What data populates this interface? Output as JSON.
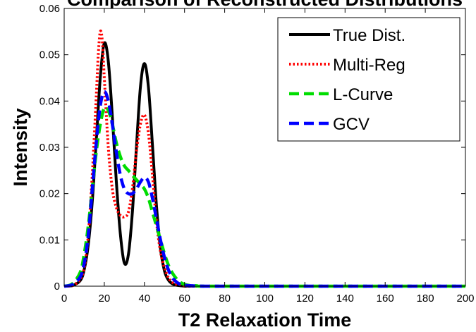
{
  "chart_data": {
    "type": "line",
    "title": "Comparison of Reconstructed Distributions",
    "xlabel": "T2 Relaxation Time",
    "ylabel": "Intensity",
    "xlim": [
      0,
      200
    ],
    "ylim": [
      0,
      0.06
    ],
    "xticks": [
      0,
      20,
      40,
      60,
      80,
      100,
      120,
      140,
      160,
      180,
      200
    ],
    "yticks": [
      0,
      0.01,
      0.02,
      0.03,
      0.04,
      0.05,
      0.06
    ],
    "xtick_labels": [
      "0",
      "20",
      "40",
      "60",
      "80",
      "100",
      "120",
      "140",
      "160",
      "180",
      "200"
    ],
    "ytick_labels": [
      "0",
      "0.01",
      "0.02",
      "0.03",
      "0.04",
      "0.05",
      "0.06"
    ],
    "grid": false,
    "legend_position": "top-right",
    "series": [
      {
        "name": "True Dist.",
        "color": "#000000",
        "style": "solid",
        "x": [
          0,
          4,
          8,
          10,
          12,
          14,
          16,
          18,
          20,
          22,
          24,
          26,
          28,
          30,
          32,
          34,
          36,
          38,
          40,
          42,
          44,
          46,
          48,
          50,
          52,
          54,
          56,
          58,
          60,
          64,
          70,
          100,
          150,
          200
        ],
        "y": [
          0,
          0.0001,
          0.0012,
          0.0036,
          0.0089,
          0.0183,
          0.0315,
          0.0451,
          0.0525,
          0.0486,
          0.0367,
          0.0226,
          0.0113,
          0.005,
          0.0068,
          0.016,
          0.0299,
          0.043,
          0.0481,
          0.043,
          0.0305,
          0.0174,
          0.0082,
          0.0033,
          0.0013,
          0.0005,
          0.0002,
          0.0001,
          0,
          0,
          0,
          0,
          0,
          0
        ]
      },
      {
        "name": "Multi-Reg",
        "color": "#ff0000",
        "style": "dotted",
        "x": [
          0,
          4,
          8,
          10,
          12,
          14,
          16,
          17,
          18,
          19,
          20,
          22,
          24,
          26,
          28,
          30,
          32,
          34,
          36,
          38,
          40,
          42,
          44,
          46,
          48,
          50,
          52,
          54,
          56,
          58,
          60,
          64,
          70,
          100,
          150,
          200
        ],
        "y": [
          0,
          0.0001,
          0.0015,
          0.004,
          0.011,
          0.024,
          0.041,
          0.05,
          0.055,
          0.053,
          0.045,
          0.03,
          0.021,
          0.017,
          0.0153,
          0.015,
          0.016,
          0.021,
          0.029,
          0.035,
          0.037,
          0.033,
          0.024,
          0.014,
          0.0075,
          0.004,
          0.0018,
          0.0008,
          0.0004,
          0.0002,
          0.0001,
          0,
          0,
          0,
          0,
          0
        ]
      },
      {
        "name": "L-Curve",
        "color": "#00dd00",
        "style": "dashed",
        "x": [
          0,
          4,
          8,
          10,
          12,
          14,
          16,
          18,
          20,
          22,
          24,
          26,
          28,
          30,
          32,
          34,
          36,
          38,
          40,
          42,
          44,
          46,
          48,
          50,
          52,
          54,
          56,
          58,
          60,
          62,
          66,
          70,
          100,
          150,
          200
        ],
        "y": [
          0,
          0.0005,
          0.003,
          0.007,
          0.013,
          0.021,
          0.029,
          0.035,
          0.0385,
          0.038,
          0.035,
          0.031,
          0.028,
          0.026,
          0.025,
          0.024,
          0.023,
          0.022,
          0.021,
          0.019,
          0.016,
          0.013,
          0.01,
          0.007,
          0.0045,
          0.0028,
          0.0016,
          0.0008,
          0.0004,
          0.0002,
          0.0001,
          0,
          0,
          0,
          0
        ]
      },
      {
        "name": "GCV",
        "color": "#0000ff",
        "style": "dashed",
        "x": [
          0,
          4,
          8,
          10,
          12,
          14,
          16,
          18,
          20,
          22,
          24,
          26,
          28,
          30,
          32,
          34,
          36,
          38,
          40,
          42,
          44,
          46,
          48,
          50,
          52,
          54,
          56,
          58,
          60,
          64,
          70,
          100,
          150,
          200
        ],
        "y": [
          0,
          0.0003,
          0.002,
          0.005,
          0.011,
          0.021,
          0.031,
          0.039,
          0.042,
          0.04,
          0.035,
          0.029,
          0.024,
          0.021,
          0.02,
          0.02,
          0.021,
          0.0225,
          0.0235,
          0.0225,
          0.019,
          0.0145,
          0.01,
          0.0062,
          0.0035,
          0.0018,
          0.0009,
          0.0004,
          0.0002,
          0.0001,
          0,
          0,
          0,
          0
        ]
      }
    ]
  }
}
